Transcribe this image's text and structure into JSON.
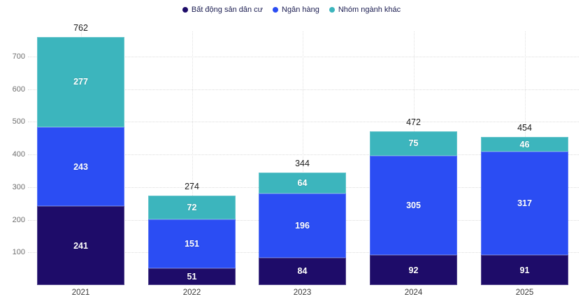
{
  "chart_data": {
    "type": "bar",
    "stacked": true,
    "title": "",
    "categories": [
      "2021",
      "2022",
      "2023",
      "2024",
      "2025"
    ],
    "series": [
      {
        "name": "Bất động sản dân cư",
        "color": "#1e0c69",
        "values": [
          241,
          51,
          84,
          92,
          91
        ]
      },
      {
        "name": "Ngân hàng",
        "color": "#2b4df3",
        "values": [
          243,
          151,
          196,
          305,
          317
        ]
      },
      {
        "name": "Nhóm ngành khác",
        "color": "#3cb5bd",
        "values": [
          277,
          72,
          64,
          75,
          46
        ]
      }
    ],
    "totals": [
      762,
      274,
      344,
      472,
      454
    ],
    "y_ticks": [
      100,
      200,
      300,
      400,
      500,
      600,
      700
    ],
    "ylim": [
      0,
      777
    ],
    "grid": true,
    "legend_position": "top",
    "value_labels": "inside-white",
    "total_labels": "above-bars",
    "colors": {
      "background": "#ffffff",
      "gridline": "#dcdcdc",
      "legend_text": "#1b1d51",
      "y_tick_text": "#6e6e6e",
      "x_tick_text": "#3a3a3a",
      "total_text": "#1a1a1a",
      "value_text": "#ffffff"
    }
  }
}
